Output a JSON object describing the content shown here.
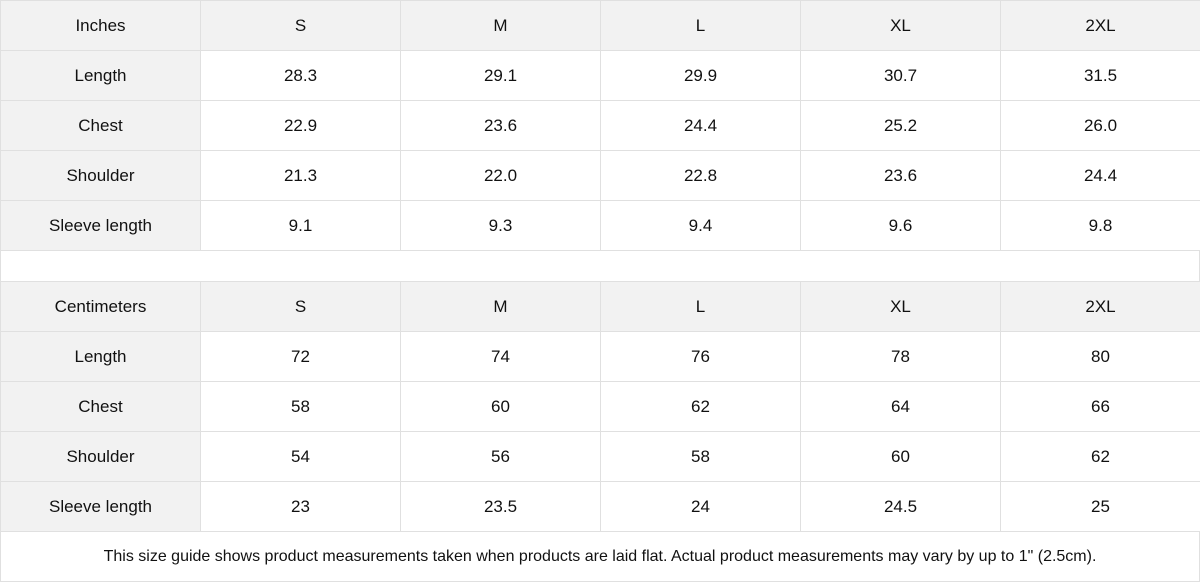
{
  "tables": [
    {
      "unit": "Inches",
      "sizes": [
        "S",
        "M",
        "L",
        "XL",
        "2XL"
      ],
      "rows": [
        {
          "label": "Length",
          "values": [
            "28.3",
            "29.1",
            "29.9",
            "30.7",
            "31.5"
          ]
        },
        {
          "label": "Chest",
          "values": [
            "22.9",
            "23.6",
            "24.4",
            "25.2",
            "26.0"
          ]
        },
        {
          "label": "Shoulder",
          "values": [
            "21.3",
            "22.0",
            "22.8",
            "23.6",
            "24.4"
          ]
        },
        {
          "label": "Sleeve length",
          "values": [
            "9.1",
            "9.3",
            "9.4",
            "9.6",
            "9.8"
          ]
        }
      ]
    },
    {
      "unit": "Centimeters",
      "sizes": [
        "S",
        "M",
        "L",
        "XL",
        "2XL"
      ],
      "rows": [
        {
          "label": "Length",
          "values": [
            "72",
            "74",
            "76",
            "78",
            "80"
          ]
        },
        {
          "label": "Chest",
          "values": [
            "58",
            "60",
            "62",
            "64",
            "66"
          ]
        },
        {
          "label": "Shoulder",
          "values": [
            "54",
            "56",
            "58",
            "60",
            "62"
          ]
        },
        {
          "label": "Sleeve length",
          "values": [
            "23",
            "23.5",
            "24",
            "24.5",
            "25"
          ]
        }
      ]
    }
  ],
  "note": "This size guide shows product measurements taken when products are laid flat.  Actual product measurements may vary by up to 1\" (2.5cm).",
  "colors": {
    "header_bg": "#f2f2f2",
    "border": "#e0e0e0"
  }
}
